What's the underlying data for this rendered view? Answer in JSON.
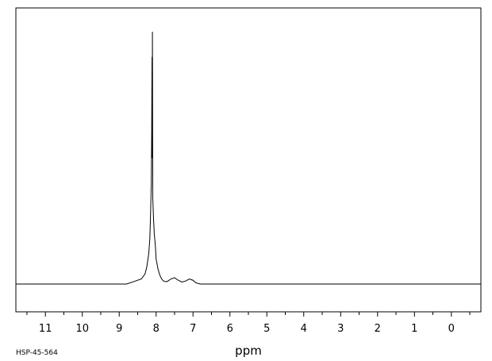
{
  "chart_data": {
    "type": "line",
    "xlabel": "ppm",
    "xlim": [
      11.8,
      -0.8
    ],
    "x_reversed": true,
    "major_ticks": [
      "11",
      "10",
      "9",
      "8",
      "7",
      "6",
      "5",
      "4",
      "3",
      "2",
      "1",
      "0"
    ],
    "grid": false,
    "series": [
      {
        "x": [
          11.8,
          8.8,
          8.6,
          8.4,
          8.3,
          8.25,
          8.2,
          8.17,
          8.15,
          8.13,
          8.12,
          8.11,
          8.105,
          8.1,
          8.095,
          8.09,
          8.08,
          8.07,
          8.05,
          8.02,
          8.0,
          7.95,
          7.9,
          7.85,
          7.8,
          7.75,
          7.7,
          7.6,
          7.5,
          7.4,
          7.3,
          7.2,
          7.1,
          7.0,
          6.95,
          6.9,
          6.85,
          6.8,
          6.7,
          -0.8
        ],
        "y": [
          0.0,
          0.0,
          0.01,
          0.02,
          0.04,
          0.07,
          0.12,
          0.18,
          0.28,
          0.4,
          0.6,
          0.9,
          0.5,
          1.0,
          0.6,
          0.34,
          0.3,
          0.26,
          0.2,
          0.15,
          0.1,
          0.06,
          0.035,
          0.02,
          0.012,
          0.01,
          0.01,
          0.02,
          0.025,
          0.015,
          0.008,
          0.012,
          0.02,
          0.015,
          0.008,
          0.004,
          0.002,
          0.0,
          0.0,
          0.0
        ]
      }
    ]
  },
  "footer": {
    "spectrum_code": "HSP-45-564"
  }
}
